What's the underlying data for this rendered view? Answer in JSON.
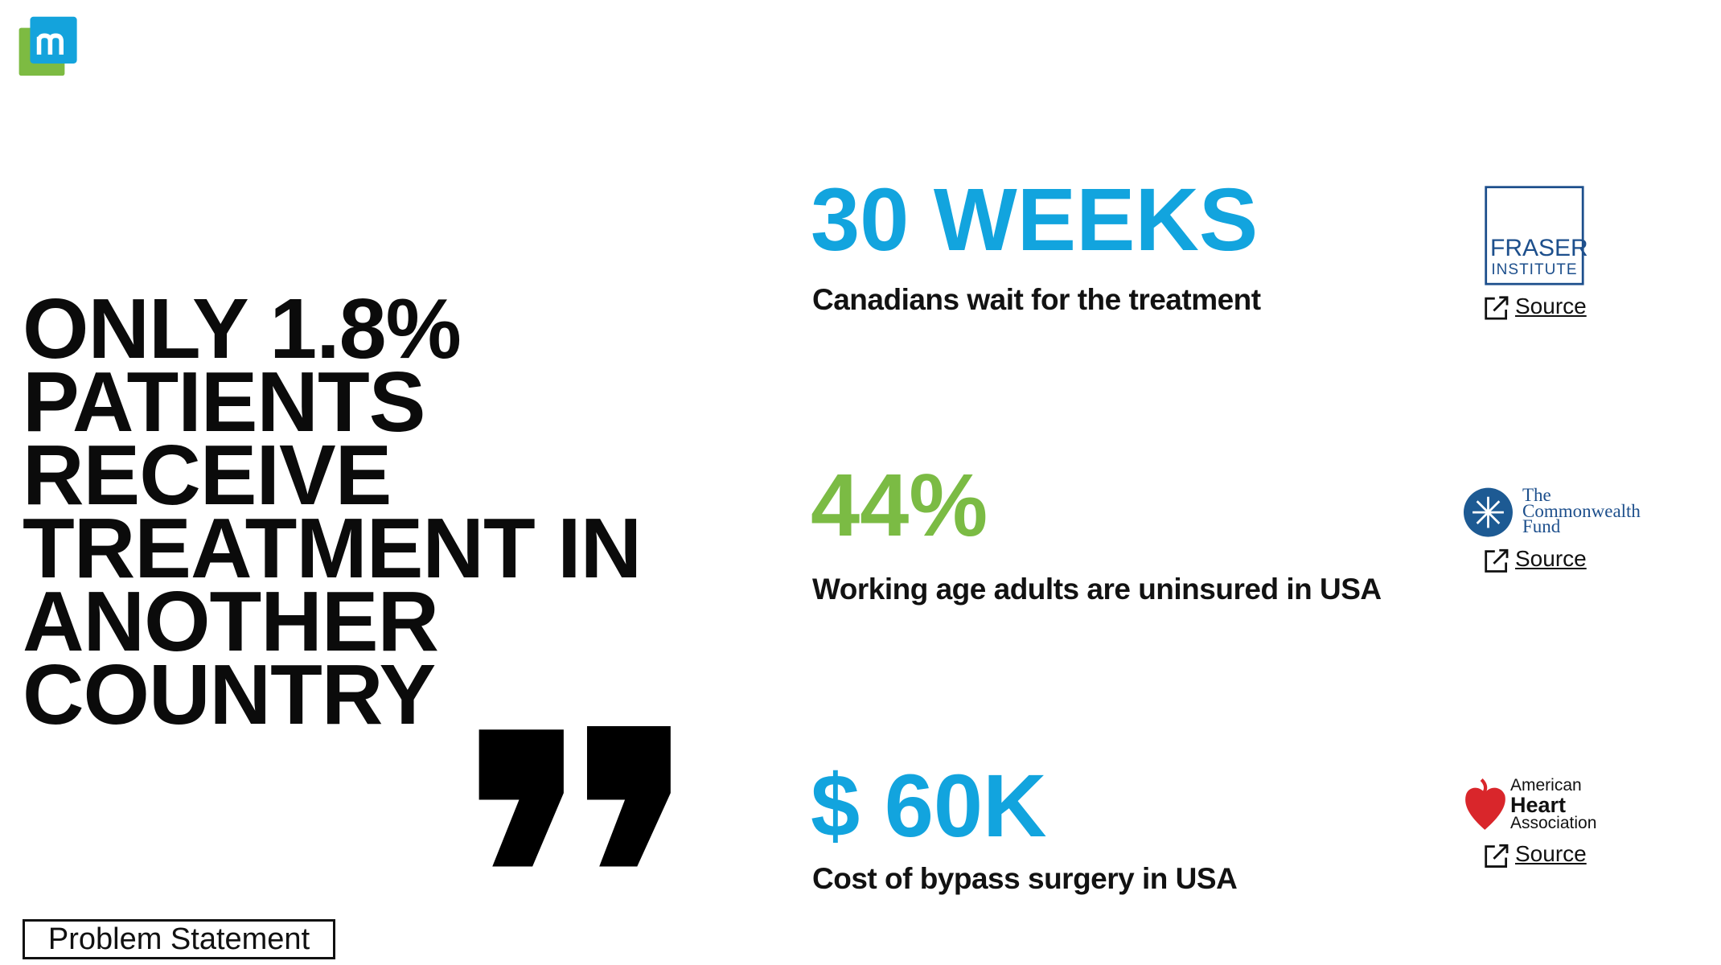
{
  "headline": {
    "lines": [
      "ONLY 1.8%",
      "PATIENTS",
      "RECEIVE",
      "TREATMENT IN",
      "ANOTHER",
      "COUNTRY"
    ]
  },
  "stats": [
    {
      "value": "30 WEEKS",
      "description": "Canadians wait for the treatment",
      "source_logo": [
        "FRASER",
        "INSTITUTE"
      ],
      "link": "Source"
    },
    {
      "value": "44%",
      "description": "Working age adults are uninsured in USA",
      "source_logo": [
        "The",
        "Commonwealth",
        "Fund"
      ],
      "link": "Source"
    },
    {
      "value": "$ 60K",
      "description": "Cost of bypass surgery in USA",
      "source_logo": [
        "American",
        "Heart",
        "Association"
      ],
      "link": "Source"
    }
  ],
  "label": "Problem Statement"
}
